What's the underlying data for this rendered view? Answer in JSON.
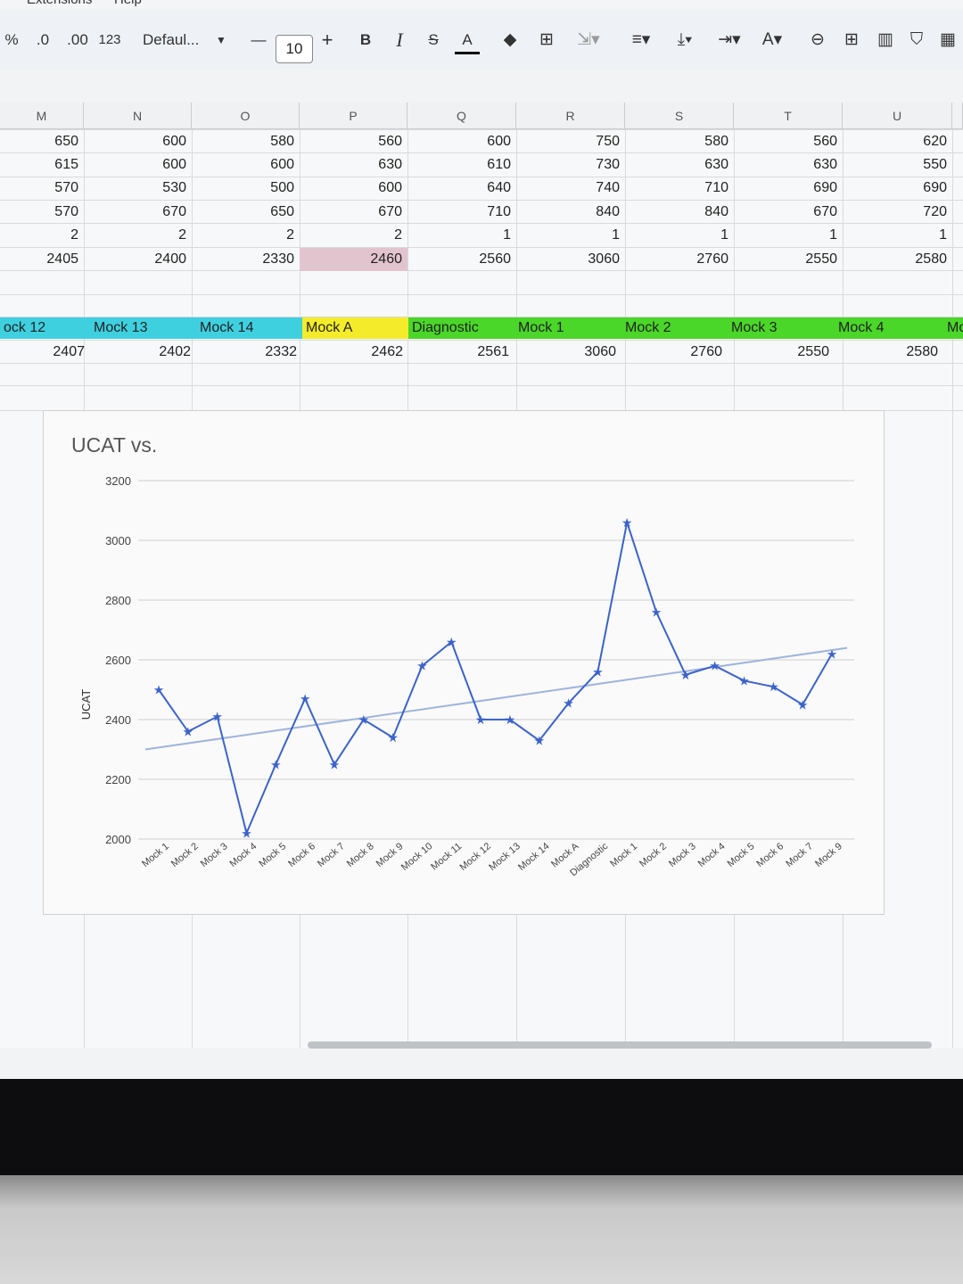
{
  "menu": {
    "items": [
      "Extensions",
      "Help"
    ]
  },
  "toolbar": {
    "percent": "%",
    "dec_decrease": ".0",
    "dec_increase": ".00",
    "number_format": "123",
    "font_name": "Defaul...",
    "minus": "—",
    "font_size": "10",
    "plus": "+",
    "bold": "B",
    "italic": "I",
    "strike": "S",
    "text_color": "A"
  },
  "columns": [
    "M",
    "N",
    "O",
    "P",
    "Q",
    "R",
    "S",
    "T",
    "U"
  ],
  "rows": [
    [
      "650",
      "600",
      "580",
      "560",
      "600",
      "750",
      "580",
      "560",
      "620"
    ],
    [
      "615",
      "600",
      "600",
      "630",
      "610",
      "730",
      "630",
      "630",
      "550"
    ],
    [
      "570",
      "530",
      "500",
      "600",
      "640",
      "740",
      "710",
      "690",
      "690"
    ],
    [
      "570",
      "670",
      "650",
      "670",
      "710",
      "840",
      "840",
      "670",
      "720"
    ],
    [
      "2",
      "2",
      "2",
      "2",
      "1",
      "1",
      "1",
      "1",
      "1"
    ],
    [
      "2405",
      "2400",
      "2330",
      "2460",
      "2560",
      "3060",
      "2760",
      "2550",
      "2580"
    ]
  ],
  "label_row": [
    "ock 12",
    "Mock 13",
    "Mock 14",
    "Mock A",
    "Diagnostic",
    "Mock 1",
    "Mock 2",
    "Mock 3",
    "Mock 4",
    "Mc"
  ],
  "label_colors": {
    "cyan": "#3fd0e0",
    "yellow": "#f4ec2a",
    "green": "#4bd62a"
  },
  "total_row": [
    "2407",
    "2402",
    "2332",
    "2462",
    "2561",
    "3060",
    "2760",
    "2550",
    "2580"
  ],
  "chart_data": {
    "type": "line",
    "title": "UCAT vs.",
    "ylabel": "UCAT",
    "xlabel": "",
    "ylim": [
      2000,
      3200
    ],
    "yticks": [
      "2000",
      "2200",
      "2400",
      "2600",
      "2800",
      "3000",
      "3200"
    ],
    "categories": [
      "Mock 1",
      "Mock 2",
      "Mock 3",
      "Mock 4",
      "Mock 5",
      "Mock 6",
      "Mock 7",
      "Mock 8",
      "Mock 9",
      "Mock 10",
      "Mock 11",
      "Mock 12",
      "Mock 13",
      "Mock 14",
      "Mock A",
      "Diagnostic",
      "Mock 1",
      "Mock 2",
      "Mock 3",
      "Mock 4",
      "Mock 5",
      "Mock 6",
      "Mock 7",
      "Mock 9"
    ],
    "series": [
      {
        "values": [
          2500,
          2360,
          2410,
          2020,
          2250,
          2470,
          2250,
          2400,
          2340,
          2580,
          2660,
          2400,
          2400,
          2330,
          2455,
          2560,
          3060,
          2760,
          2550,
          2580,
          2530,
          2510,
          2450,
          2620
        ],
        "color": "#3b63c9"
      }
    ],
    "trendline": {
      "start": 2300,
      "end": 2640,
      "color": "#9fb4dc"
    },
    "grid": true
  }
}
